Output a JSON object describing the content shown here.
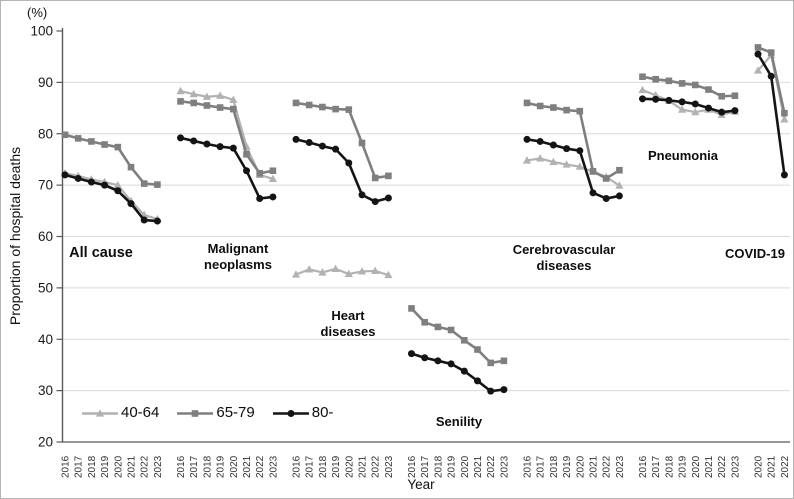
{
  "chart_data": {
    "type": "line",
    "unit_label": "(%)",
    "ylabel": "Proportion of hospital deaths",
    "xlabel": "Year",
    "ylim": [
      20,
      100
    ],
    "yticks": [
      20,
      30,
      40,
      50,
      60,
      70,
      80,
      90,
      100
    ],
    "grid": true,
    "legend_position": "bottom-left-inside",
    "series_meta": [
      {
        "name": "40-64",
        "color": "#b2b2b2",
        "marker": "triangle"
      },
      {
        "name": "65-79",
        "color": "#7f7f7f",
        "marker": "square"
      },
      {
        "name": "80-",
        "color": "#141414",
        "marker": "circle"
      }
    ],
    "groups": [
      {
        "label": "All cause",
        "years": [
          "2016",
          "2017",
          "2018",
          "2019",
          "2020",
          "2021",
          "2022",
          "2023"
        ],
        "series": [
          {
            "name": "40-64",
            "values": [
              72.3,
              71.8,
              71.1,
              70.6,
              70.0,
              66.9,
              64.2,
              63.4
            ]
          },
          {
            "name": "65-79",
            "values": [
              79.8,
              79.1,
              78.5,
              77.9,
              77.4,
              73.5,
              70.3,
              70.1
            ]
          },
          {
            "name": "80-",
            "values": [
              72.0,
              71.3,
              70.6,
              70.0,
              68.9,
              66.4,
              63.2,
              63.0
            ]
          }
        ]
      },
      {
        "label": "Malignant neoplasms",
        "years": [
          "2016",
          "2017",
          "2018",
          "2019",
          "2020",
          "2021",
          "2022",
          "2023"
        ],
        "series": [
          {
            "name": "40-64",
            "values": [
              88.3,
              87.7,
              87.2,
              87.4,
              86.6,
              77.5,
              72.0,
              71.2
            ]
          },
          {
            "name": "65-79",
            "values": [
              86.3,
              86.0,
              85.5,
              85.1,
              84.8,
              76.0,
              72.3,
              72.8
            ]
          },
          {
            "name": "80-",
            "values": [
              79.2,
              78.6,
              78.0,
              77.5,
              77.2,
              72.8,
              67.4,
              67.7
            ]
          }
        ]
      },
      {
        "label": "Heart diseases",
        "years": [
          "2016",
          "2017",
          "2018",
          "2019",
          "2020",
          "2021",
          "2022",
          "2023"
        ],
        "series": [
          {
            "name": "40-64",
            "values": [
              52.6,
              53.6,
              53.0,
              53.7,
              52.7,
              53.2,
              53.3,
              52.5
            ]
          },
          {
            "name": "65-79",
            "values": [
              86.0,
              85.6,
              85.2,
              84.8,
              84.7,
              78.2,
              71.4,
              71.8
            ]
          },
          {
            "name": "80-",
            "values": [
              78.9,
              78.3,
              77.6,
              77.0,
              74.3,
              68.1,
              66.8,
              67.5
            ]
          }
        ]
      },
      {
        "label": "Senility",
        "years": [
          "2016",
          "2017",
          "2018",
          "2019",
          "2020",
          "2021",
          "2022",
          "2023"
        ],
        "series": [
          {
            "name": "65-79",
            "values": [
              46.0,
              43.3,
              42.4,
              41.8,
              39.8,
              38.0,
              35.4,
              35.8
            ]
          },
          {
            "name": "80-",
            "values": [
              37.2,
              36.4,
              35.8,
              35.2,
              33.8,
              31.9,
              29.9,
              30.2
            ]
          }
        ]
      },
      {
        "label": "Cerebrovascular diseases",
        "years": [
          "2016",
          "2017",
          "2018",
          "2019",
          "2020",
          "2021",
          "2022",
          "2023"
        ],
        "series": [
          {
            "name": "40-64",
            "values": [
              74.8,
              75.2,
              74.5,
              74.0,
              73.6,
              72.6,
              71.6,
              69.9
            ]
          },
          {
            "name": "65-79",
            "values": [
              86.0,
              85.4,
              85.1,
              84.6,
              84.4,
              72.7,
              71.3,
              72.9
            ]
          },
          {
            "name": "80-",
            "values": [
              78.9,
              78.5,
              77.8,
              77.1,
              76.7,
              68.5,
              67.4,
              67.9
            ]
          }
        ]
      },
      {
        "label": "Pneumonia",
        "years": [
          "2016",
          "2017",
          "2018",
          "2019",
          "2020",
          "2021",
          "2022",
          "2023"
        ],
        "series": [
          {
            "name": "40-64",
            "values": [
              88.5,
              87.5,
              86.4,
              84.7,
              84.2,
              84.7,
              83.7,
              84.3
            ]
          },
          {
            "name": "65-79",
            "values": [
              91.1,
              90.6,
              90.3,
              89.8,
              89.5,
              88.6,
              87.3,
              87.4
            ]
          },
          {
            "name": "80-",
            "values": [
              86.8,
              86.7,
              86.5,
              86.2,
              85.8,
              85.0,
              84.2,
              84.5
            ]
          }
        ]
      },
      {
        "label": "COVID-19",
        "years": [
          "2020",
          "2021",
          "2022"
        ],
        "series": [
          {
            "name": "40-64",
            "values": [
              92.3,
              95.3,
              82.8
            ]
          },
          {
            "name": "65-79",
            "values": [
              96.8,
              95.8,
              84.0
            ]
          },
          {
            "name": "80-",
            "values": [
              95.5,
              91.2,
              72.0
            ]
          }
        ]
      }
    ]
  }
}
